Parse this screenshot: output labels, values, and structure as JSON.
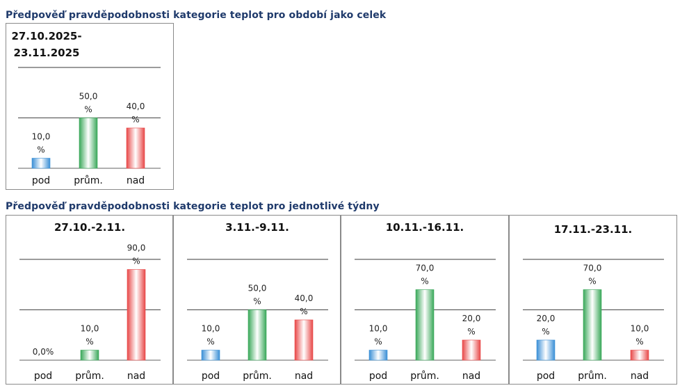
{
  "section_overall_title": "Předpověď pravděpodobnosti kategorie teplot pro období jako celek",
  "section_weekly_title": "Předpověď pravděpodobnosti kategorie teplot pro jednotlivé týdny",
  "colors": {
    "pod": "#3a8fd6",
    "prum": "#3aa85a",
    "nad": "#e84848",
    "title": "#1f3a6b"
  },
  "chart_data": [
    {
      "type": "bar",
      "title": "27.10.2025-\n23.11.2025",
      "categories": [
        "pod",
        "prům.",
        "nad"
      ],
      "values": [
        10.0,
        50.0,
        40.0
      ],
      "labels": [
        "10,0\n%",
        "50,0\n%",
        "40,0\n%"
      ],
      "ylim": [
        0,
        100
      ]
    },
    {
      "type": "bar",
      "title": "27.10.-2.11.",
      "categories": [
        "pod",
        "prům.",
        "nad"
      ],
      "values": [
        0.0,
        10.0,
        90.0
      ],
      "labels": [
        "0,0%",
        "10,0\n%",
        "90,0\n%"
      ],
      "ylim": [
        0,
        100
      ]
    },
    {
      "type": "bar",
      "title": "3.11.-9.11.",
      "categories": [
        "pod",
        "prům.",
        "nad"
      ],
      "values": [
        10.0,
        50.0,
        40.0
      ],
      "labels": [
        "10,0\n%",
        "50,0\n%",
        "40,0\n%"
      ],
      "ylim": [
        0,
        100
      ]
    },
    {
      "type": "bar",
      "title": "10.11.-16.11.",
      "categories": [
        "pod",
        "prům.",
        "nad"
      ],
      "values": [
        10.0,
        70.0,
        20.0
      ],
      "labels": [
        "10,0\n%",
        "70,0\n%",
        "20,0\n%"
      ],
      "ylim": [
        0,
        100
      ]
    },
    {
      "type": "bar",
      "title": "17.11.-23.11.",
      "categories": [
        "pod",
        "prům.",
        "nad"
      ],
      "values": [
        20.0,
        70.0,
        10.0
      ],
      "labels": [
        "20,0\n%",
        "70,0\n%",
        "10,0\n%"
      ],
      "ylim": [
        0,
        100
      ]
    }
  ]
}
